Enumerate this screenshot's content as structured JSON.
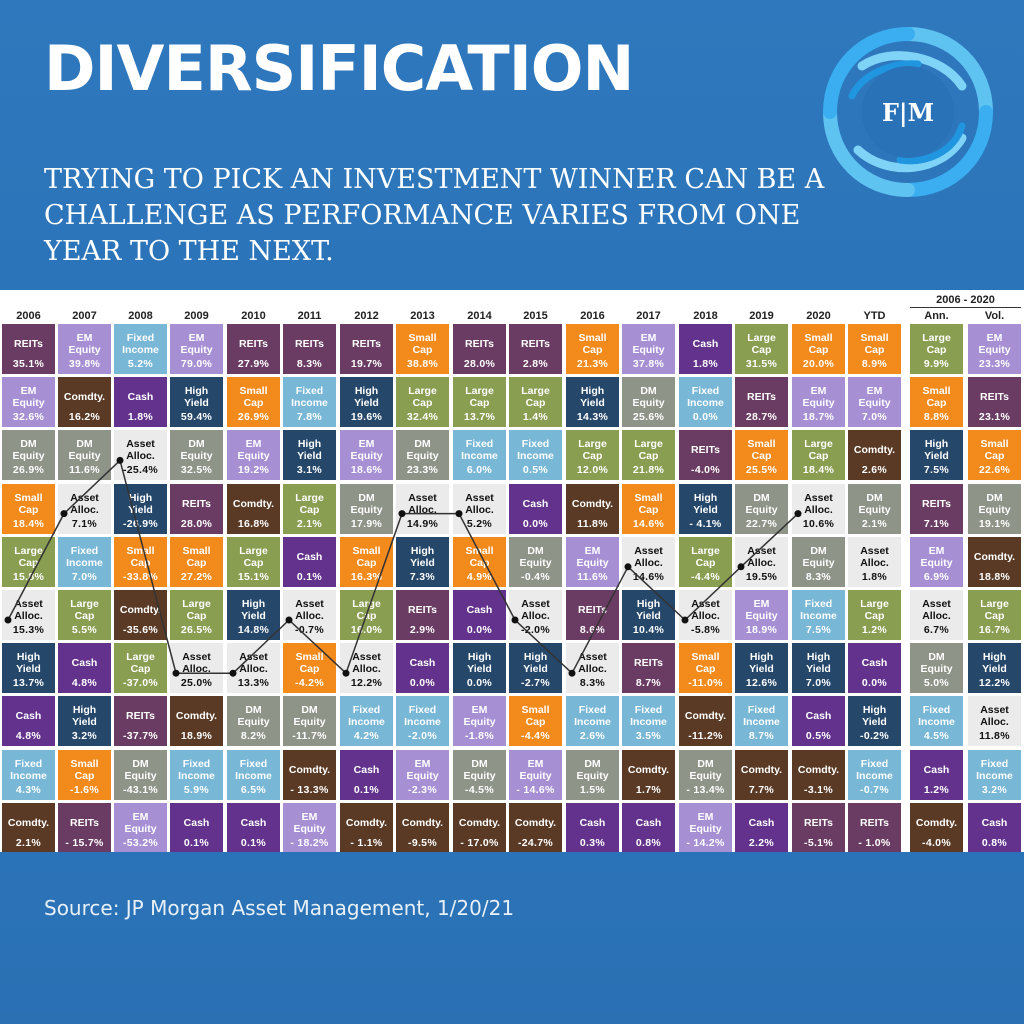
{
  "header": {
    "title": "DIVERSIFICATION",
    "subtitle": "TRYING TO PICK AN INVESTMENT WINNER CAN BE A CHALLENGE AS PERFORMANCE VARIES FROM ONE YEAR TO THE NEXT.",
    "logo_text": "F|M"
  },
  "footer": {
    "source": "Source: JP Morgan Asset Management, 1/20/21"
  },
  "colors": {
    "REITs": "#6b3c63",
    "EM Equity": "#a78fd4",
    "Fixed Income": "#78b7d6",
    "Comdty.": "#5a3a25",
    "Cash": "#63328d",
    "High Yield": "#25476a",
    "Small Cap": "#f28a1c",
    "DM Equity": "#8e9488",
    "Asset Alloc.": "#ebebeb",
    "Large Cap": "#8a9e52",
    "brand_blue": "#2a72b8",
    "line": "#333333"
  },
  "chart_data": {
    "type": "table",
    "title": "",
    "columns": [
      "2006",
      "2007",
      "2008",
      "2009",
      "2010",
      "2011",
      "2012",
      "2013",
      "2014",
      "2015",
      "2016",
      "2017",
      "2018",
      "2019",
      "2020",
      "YTD",
      "Ann.",
      "Vol."
    ],
    "group_header": "2006 - 2020",
    "asset_class_names": {
      "REITs": "REITs",
      "EM Equity": "EM\nEquity",
      "Fixed Income": "Fixed\nIncome",
      "Comdty.": "Comdty.",
      "Cash": "Cash",
      "High Yield": "High\nYield",
      "Small Cap": "Small\nCap",
      "DM Equity": "DM\nEquity",
      "Asset Alloc.": "Asset\nAlloc.",
      "Large Cap": "Large\nCap"
    },
    "cells": [
      [
        [
          "REITs",
          "35.1%"
        ],
        [
          "EM Equity",
          "32.6%"
        ],
        [
          "DM Equity",
          "26.9%"
        ],
        [
          "Small Cap",
          "18.4%"
        ],
        [
          "Large Cap",
          "15.8%"
        ],
        [
          "Asset Alloc.",
          "15.3%"
        ],
        [
          "High Yield",
          "13.7%"
        ],
        [
          "Cash",
          "4.8%"
        ],
        [
          "Fixed Income",
          "4.3%"
        ],
        [
          "Comdty.",
          "2.1%"
        ]
      ],
      [
        [
          "EM Equity",
          "39.8%"
        ],
        [
          "Comdty.",
          "16.2%"
        ],
        [
          "DM Equity",
          "11.6%"
        ],
        [
          "Asset Alloc.",
          "7.1%"
        ],
        [
          "Fixed Income",
          "7.0%"
        ],
        [
          "Large Cap",
          "5.5%"
        ],
        [
          "Cash",
          "4.8%"
        ],
        [
          "High Yield",
          "3.2%"
        ],
        [
          "Small Cap",
          "-1.6%"
        ],
        [
          "REITs",
          "- 15.7%"
        ]
      ],
      [
        [
          "Fixed Income",
          "5.2%"
        ],
        [
          "Cash",
          "1.8%"
        ],
        [
          "Asset Alloc.",
          "-25.4%"
        ],
        [
          "High Yield",
          "-26.9%"
        ],
        [
          "Small Cap",
          "-33.8%"
        ],
        [
          "Comdty.",
          "-35.6%"
        ],
        [
          "Large Cap",
          "-37.0%"
        ],
        [
          "REITs",
          "-37.7%"
        ],
        [
          "DM Equity",
          "-43.1%"
        ],
        [
          "EM Equity",
          "-53.2%"
        ]
      ],
      [
        [
          "EM Equity",
          "79.0%"
        ],
        [
          "High Yield",
          "59.4%"
        ],
        [
          "DM Equity",
          "32.5%"
        ],
        [
          "REITs",
          "28.0%"
        ],
        [
          "Small Cap",
          "27.2%"
        ],
        [
          "Large Cap",
          "26.5%"
        ],
        [
          "Asset Alloc.",
          "25.0%"
        ],
        [
          "Comdty.",
          "18.9%"
        ],
        [
          "Fixed Income",
          "5.9%"
        ],
        [
          "Cash",
          "0.1%"
        ]
      ],
      [
        [
          "REITs",
          "27.9%"
        ],
        [
          "Small Cap",
          "26.9%"
        ],
        [
          "EM Equity",
          "19.2%"
        ],
        [
          "Comdty.",
          "16.8%"
        ],
        [
          "Large Cap",
          "15.1%"
        ],
        [
          "High Yield",
          "14.8%"
        ],
        [
          "Asset Alloc.",
          "13.3%"
        ],
        [
          "DM Equity",
          "8.2%"
        ],
        [
          "Fixed Income",
          "6.5%"
        ],
        [
          "Cash",
          "0.1%"
        ]
      ],
      [
        [
          "REITs",
          "8.3%"
        ],
        [
          "Fixed Income",
          "7.8%"
        ],
        [
          "High Yield",
          "3.1%"
        ],
        [
          "Large Cap",
          "2.1%"
        ],
        [
          "Cash",
          "0.1%"
        ],
        [
          "Asset Alloc.",
          "-0.7%"
        ],
        [
          "Small Cap",
          "-4.2%"
        ],
        [
          "DM Equity",
          "-11.7%"
        ],
        [
          "Comdty.",
          "- 13.3%"
        ],
        [
          "EM Equity",
          "- 18.2%"
        ]
      ],
      [
        [
          "REITs",
          "19.7%"
        ],
        [
          "High Yield",
          "19.6%"
        ],
        [
          "EM Equity",
          "18.6%"
        ],
        [
          "DM Equity",
          "17.9%"
        ],
        [
          "Small Cap",
          "16.3%"
        ],
        [
          "Large Cap",
          "16.0%"
        ],
        [
          "Asset Alloc.",
          "12.2%"
        ],
        [
          "Fixed Income",
          "4.2%"
        ],
        [
          "Cash",
          "0.1%"
        ],
        [
          "Comdty.",
          "- 1.1%"
        ]
      ],
      [
        [
          "Small Cap",
          "38.8%"
        ],
        [
          "Large Cap",
          "32.4%"
        ],
        [
          "DM Equity",
          "23.3%"
        ],
        [
          "Asset Alloc.",
          "14.9%"
        ],
        [
          "High Yield",
          "7.3%"
        ],
        [
          "REITs",
          "2.9%"
        ],
        [
          "Cash",
          "0.0%"
        ],
        [
          "Fixed Income",
          "-2.0%"
        ],
        [
          "EM Equity",
          "-2.3%"
        ],
        [
          "Comdty.",
          "-9.5%"
        ]
      ],
      [
        [
          "REITs",
          "28.0%"
        ],
        [
          "Large Cap",
          "13.7%"
        ],
        [
          "Fixed Income",
          "6.0%"
        ],
        [
          "Asset Alloc.",
          "5.2%"
        ],
        [
          "Small Cap",
          "4.9%"
        ],
        [
          "Cash",
          "0.0%"
        ],
        [
          "High Yield",
          "0.0%"
        ],
        [
          "EM Equity",
          "-1.8%"
        ],
        [
          "DM Equity",
          "-4.5%"
        ],
        [
          "Comdty.",
          "- 17.0%"
        ]
      ],
      [
        [
          "REITs",
          "2.8%"
        ],
        [
          "Large Cap",
          "1.4%"
        ],
        [
          "Fixed Income",
          "0.5%"
        ],
        [
          "Cash",
          "0.0%"
        ],
        [
          "DM Equity",
          "-0.4%"
        ],
        [
          "Asset Alloc.",
          "-2.0%"
        ],
        [
          "High Yield",
          "-2.7%"
        ],
        [
          "Small Cap",
          "-4.4%"
        ],
        [
          "EM Equity",
          "- 14.6%"
        ],
        [
          "Comdty.",
          "-24.7%"
        ]
      ],
      [
        [
          "Small Cap",
          "21.3%"
        ],
        [
          "High Yield",
          "14.3%"
        ],
        [
          "Large Cap",
          "12.0%"
        ],
        [
          "Comdty.",
          "11.8%"
        ],
        [
          "EM Equity",
          "11.6%"
        ],
        [
          "REITs",
          "8.6%"
        ],
        [
          "Asset Alloc.",
          "8.3%"
        ],
        [
          "Fixed Income",
          "2.6%"
        ],
        [
          "DM Equity",
          "1.5%"
        ],
        [
          "Cash",
          "0.3%"
        ]
      ],
      [
        [
          "EM Equity",
          "37.8%"
        ],
        [
          "DM Equity",
          "25.6%"
        ],
        [
          "Large Cap",
          "21.8%"
        ],
        [
          "Small Cap",
          "14.6%"
        ],
        [
          "Asset Alloc.",
          "14.6%"
        ],
        [
          "High Yield",
          "10.4%"
        ],
        [
          "REITs",
          "8.7%"
        ],
        [
          "Fixed Income",
          "3.5%"
        ],
        [
          "Comdty.",
          "1.7%"
        ],
        [
          "Cash",
          "0.8%"
        ]
      ],
      [
        [
          "Cash",
          "1.8%"
        ],
        [
          "Fixed Income",
          "0.0%"
        ],
        [
          "REITs",
          "-4.0%"
        ],
        [
          "High Yield",
          "- 4.1%"
        ],
        [
          "Large Cap",
          "-4.4%"
        ],
        [
          "Asset Alloc.",
          "-5.8%"
        ],
        [
          "Small Cap",
          "-11.0%"
        ],
        [
          "Comdty.",
          "-11.2%"
        ],
        [
          "DM Equity",
          "- 13.4%"
        ],
        [
          "EM Equity",
          "- 14.2%"
        ]
      ],
      [
        [
          "Large Cap",
          "31.5%"
        ],
        [
          "REITs",
          "28.7%"
        ],
        [
          "Small Cap",
          "25.5%"
        ],
        [
          "DM Equity",
          "22.7%"
        ],
        [
          "Asset Alloc.",
          "19.5%"
        ],
        [
          "EM Equity",
          "18.9%"
        ],
        [
          "High Yield",
          "12.6%"
        ],
        [
          "Fixed Income",
          "8.7%"
        ],
        [
          "Comdty.",
          "7.7%"
        ],
        [
          "Cash",
          "2.2%"
        ]
      ],
      [
        [
          "Small Cap",
          "20.0%"
        ],
        [
          "EM Equity",
          "18.7%"
        ],
        [
          "Large Cap",
          "18.4%"
        ],
        [
          "Asset Alloc.",
          "10.6%"
        ],
        [
          "DM Equity",
          "8.3%"
        ],
        [
          "Fixed Income",
          "7.5%"
        ],
        [
          "High Yield",
          "7.0%"
        ],
        [
          "Cash",
          "0.5%"
        ],
        [
          "Comdty.",
          "-3.1%"
        ],
        [
          "REITs",
          "-5.1%"
        ]
      ],
      [
        [
          "Small Cap",
          "8.9%"
        ],
        [
          "EM Equity",
          "7.0%"
        ],
        [
          "Comdty.",
          "2.6%"
        ],
        [
          "DM Equity",
          "2.1%"
        ],
        [
          "Asset Alloc.",
          "1.8%"
        ],
        [
          "Large Cap",
          "1.2%"
        ],
        [
          "Cash",
          "0.0%"
        ],
        [
          "High Yield",
          "-0.2%"
        ],
        [
          "Fixed Income",
          "-0.7%"
        ],
        [
          "REITs",
          "- 1.0%"
        ]
      ],
      [
        [
          "Large Cap",
          "9.9%"
        ],
        [
          "Small Cap",
          "8.8%"
        ],
        [
          "High Yield",
          "7.5%"
        ],
        [
          "REITs",
          "7.1%"
        ],
        [
          "EM Equity",
          "6.9%"
        ],
        [
          "Asset Alloc.",
          "6.7%"
        ],
        [
          "DM Equity",
          "5.0%"
        ],
        [
          "Fixed Income",
          "4.5%"
        ],
        [
          "Cash",
          "1.2%"
        ],
        [
          "Comdty.",
          "-4.0%"
        ]
      ],
      [
        [
          "EM Equity",
          "23.3%"
        ],
        [
          "REITs",
          "23.1%"
        ],
        [
          "Small Cap",
          "22.6%"
        ],
        [
          "DM Equity",
          "19.1%"
        ],
        [
          "Comdty.",
          "18.8%"
        ],
        [
          "Large Cap",
          "16.7%"
        ],
        [
          "High Yield",
          "12.2%"
        ],
        [
          "Asset Alloc.",
          "11.8%"
        ],
        [
          "Fixed Income",
          "3.2%"
        ],
        [
          "Cash",
          "0.8%"
        ]
      ]
    ],
    "asset_alloc_line": {
      "series": "Asset Alloc.",
      "columns": [
        "2006",
        "2007",
        "2008",
        "2009",
        "2010",
        "2011",
        "2012",
        "2013",
        "2014",
        "2015",
        "2016",
        "2017",
        "2018",
        "2019",
        "2020"
      ]
    }
  }
}
